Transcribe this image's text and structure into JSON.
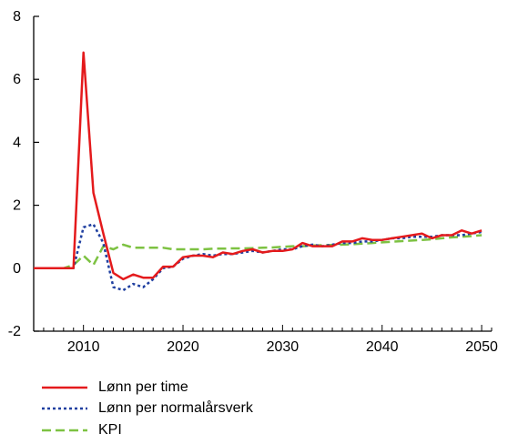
{
  "chart_data": {
    "type": "line",
    "title": "",
    "xlabel": "",
    "ylabel": "",
    "xlim": [
      2005,
      2051
    ],
    "ylim": [
      -2,
      8
    ],
    "x_ticks": [
      "2010",
      "2020",
      "2030",
      "2040",
      "2050"
    ],
    "y_ticks": [
      "-2",
      "0",
      "2",
      "4",
      "6",
      "8"
    ],
    "grid": false,
    "legend_position": "bottom",
    "series": [
      {
        "name": "Lønn per time",
        "color": "#e41a1c",
        "style": "solid",
        "x": [
          2005,
          2006,
          2007,
          2008,
          2009,
          2010,
          2011,
          2012,
          2013,
          2014,
          2015,
          2016,
          2017,
          2018,
          2019,
          2020,
          2021,
          2022,
          2023,
          2024,
          2025,
          2026,
          2027,
          2028,
          2029,
          2030,
          2031,
          2032,
          2033,
          2034,
          2035,
          2036,
          2037,
          2038,
          2039,
          2040,
          2041,
          2042,
          2043,
          2044,
          2045,
          2046,
          2047,
          2048,
          2049,
          2050
        ],
        "values": [
          0,
          0,
          0,
          0,
          0,
          6.85,
          2.4,
          1.1,
          -0.15,
          -0.35,
          -0.2,
          -0.3,
          -0.3,
          0.05,
          0.05,
          0.35,
          0.4,
          0.4,
          0.35,
          0.5,
          0.45,
          0.55,
          0.6,
          0.5,
          0.55,
          0.55,
          0.6,
          0.8,
          0.7,
          0.7,
          0.7,
          0.85,
          0.85,
          0.95,
          0.9,
          0.9,
          0.95,
          1.0,
          1.05,
          1.1,
          0.95,
          1.05,
          1.05,
          1.2,
          1.1,
          1.2
        ]
      },
      {
        "name": "Lønn per normalårsverk",
        "color": "#1f3fa0",
        "style": "dotted",
        "x": [
          2005,
          2006,
          2007,
          2008,
          2009,
          2010,
          2011,
          2012,
          2013,
          2014,
          2015,
          2016,
          2017,
          2018,
          2019,
          2020,
          2021,
          2022,
          2023,
          2024,
          2025,
          2026,
          2027,
          2028,
          2029,
          2030,
          2031,
          2032,
          2033,
          2034,
          2035,
          2036,
          2037,
          2038,
          2039,
          2040,
          2041,
          2042,
          2043,
          2044,
          2045,
          2046,
          2047,
          2048,
          2049,
          2050
        ],
        "values": [
          0,
          0,
          0,
          0,
          0,
          1.3,
          1.4,
          0.8,
          -0.6,
          -0.7,
          -0.5,
          -0.6,
          -0.35,
          0.0,
          0.05,
          0.3,
          0.4,
          0.45,
          0.4,
          0.45,
          0.45,
          0.5,
          0.55,
          0.5,
          0.55,
          0.6,
          0.6,
          0.7,
          0.75,
          0.7,
          0.75,
          0.8,
          0.8,
          0.85,
          0.85,
          0.9,
          0.95,
          0.95,
          1.0,
          1.0,
          1.0,
          1.05,
          1.05,
          1.05,
          1.1,
          1.15
        ]
      },
      {
        "name": "KPI",
        "color": "#7dc242",
        "style": "dashed",
        "x": [
          2005,
          2006,
          2007,
          2008,
          2009,
          2010,
          2011,
          2012,
          2013,
          2014,
          2015,
          2016,
          2017,
          2018,
          2019,
          2020,
          2021,
          2022,
          2023,
          2024,
          2025,
          2026,
          2027,
          2028,
          2029,
          2030,
          2031,
          2032,
          2033,
          2034,
          2035,
          2036,
          2037,
          2038,
          2039,
          2040,
          2041,
          2042,
          2043,
          2044,
          2045,
          2046,
          2047,
          2048,
          2049,
          2050
        ],
        "values": [
          0,
          0,
          0,
          0,
          0.1,
          0.4,
          0.1,
          0.7,
          0.6,
          0.75,
          0.65,
          0.65,
          0.65,
          0.65,
          0.6,
          0.6,
          0.6,
          0.6,
          0.62,
          0.62,
          0.63,
          0.63,
          0.64,
          0.65,
          0.66,
          0.68,
          0.7,
          0.7,
          0.72,
          0.73,
          0.74,
          0.75,
          0.76,
          0.78,
          0.8,
          0.82,
          0.84,
          0.86,
          0.88,
          0.9,
          0.92,
          0.95,
          0.98,
          1.0,
          1.02,
          1.05
        ]
      }
    ]
  }
}
